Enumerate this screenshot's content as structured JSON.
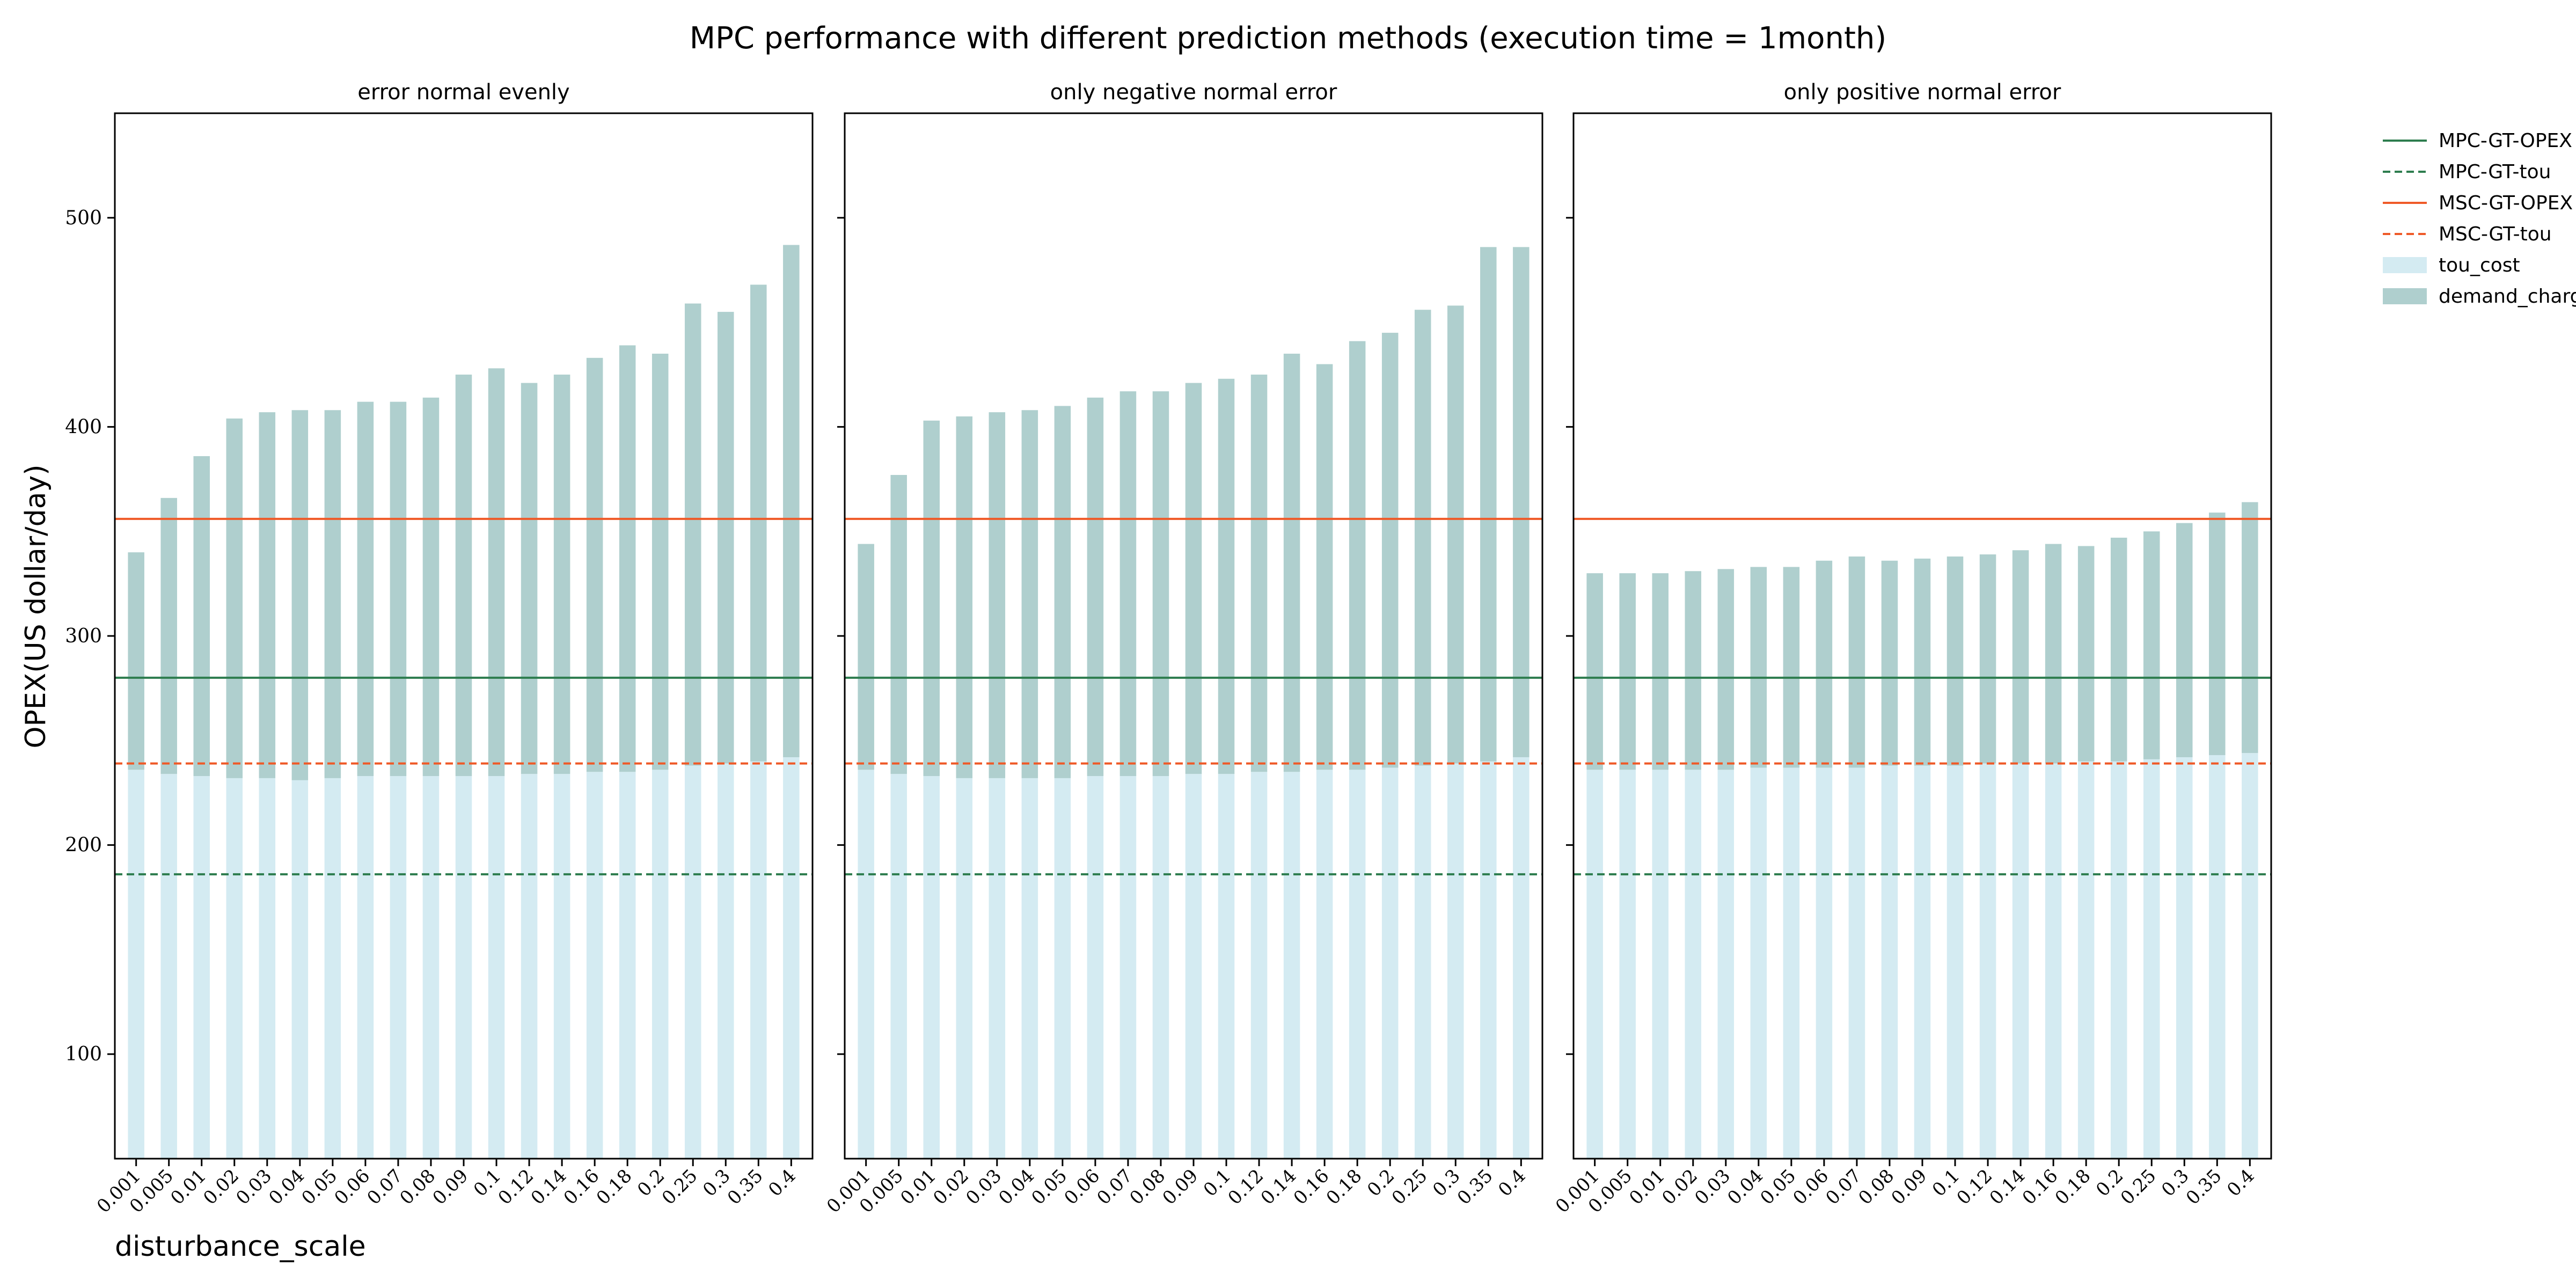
{
  "figure": {
    "title": "MPC performance with different prediction methods (execution time = 1month)",
    "ylabel": "OPEX(US dollar/day)",
    "xlabel": "disturbance_scale"
  },
  "colors": {
    "tou_cost": "#d4ebf2",
    "demand_charge": "#afcfce",
    "mpc": "#2e7d4f",
    "msc": "#ef5a28"
  },
  "legend": {
    "placement": "outside-right",
    "entries": [
      {
        "label": "MPC-GT-OPEX",
        "style": "solid",
        "color": "#2e7d4f"
      },
      {
        "label": "MPC-GT-tou",
        "style": "dashed",
        "color": "#2e7d4f"
      },
      {
        "label": "MSC-GT-OPEX",
        "style": "solid",
        "color": "#ef5a28"
      },
      {
        "label": "MSC-GT-tou",
        "style": "dashed",
        "color": "#ef5a28"
      },
      {
        "label": "tou_cost",
        "style": "patch",
        "color": "#d4ebf2"
      },
      {
        "label": "demand_charge",
        "style": "patch",
        "color": "#afcfce"
      }
    ]
  },
  "chart_data": [
    {
      "type": "bar",
      "stacked": true,
      "title": "error normal evenly",
      "xlabel": "disturbance_scale",
      "ylabel": "OPEX(US dollar/day)",
      "ylim": [
        50,
        550
      ],
      "yticks": [
        100,
        200,
        300,
        400,
        500
      ],
      "categories": [
        "0.001",
        "0.005",
        "0.01",
        "0.02",
        "0.03",
        "0.04",
        "0.05",
        "0.06",
        "0.07",
        "0.08",
        "0.09",
        "0.1",
        "0.12",
        "0.14",
        "0.16",
        "0.18",
        "0.2",
        "0.25",
        "0.3",
        "0.35",
        "0.4"
      ],
      "series": [
        {
          "name": "tou_cost",
          "values": [
            186,
            184,
            183,
            182,
            182,
            181,
            182,
            183,
            183,
            183,
            183,
            183,
            184,
            184,
            185,
            185,
            186,
            188,
            189,
            190,
            192
          ]
        },
        {
          "name": "demand_charge",
          "values": [
            104,
            132,
            153,
            172,
            175,
            177,
            176,
            179,
            179,
            181,
            192,
            195,
            187,
            191,
            198,
            204,
            199,
            221,
            216,
            228,
            245
          ]
        }
      ],
      "hlines": [
        {
          "name": "MPC-GT-OPEX",
          "value": 280
        },
        {
          "name": "MPC-GT-tou",
          "value": 186
        },
        {
          "name": "MSC-GT-OPEX",
          "value": 356
        },
        {
          "name": "MSC-GT-tou",
          "value": 239
        }
      ]
    },
    {
      "type": "bar",
      "stacked": true,
      "title": "only negative normal error",
      "xlabel": "",
      "ylabel": "",
      "ylim": [
        50,
        550
      ],
      "yticks": [
        100,
        200,
        300,
        400,
        500
      ],
      "categories": [
        "0.001",
        "0.005",
        "0.01",
        "0.02",
        "0.03",
        "0.04",
        "0.05",
        "0.06",
        "0.07",
        "0.08",
        "0.09",
        "0.1",
        "0.12",
        "0.14",
        "0.16",
        "0.18",
        "0.2",
        "0.25",
        "0.3",
        "0.35",
        "0.4"
      ],
      "series": [
        {
          "name": "tou_cost",
          "values": [
            186,
            184,
            183,
            182,
            182,
            182,
            182,
            183,
            183,
            183,
            184,
            184,
            185,
            185,
            186,
            186,
            187,
            188,
            189,
            190,
            192
          ]
        },
        {
          "name": "demand_charge",
          "values": [
            108,
            143,
            170,
            173,
            175,
            176,
            178,
            181,
            184,
            184,
            187,
            189,
            190,
            200,
            194,
            205,
            208,
            218,
            219,
            246,
            244
          ]
        }
      ],
      "hlines": [
        {
          "name": "MPC-GT-OPEX",
          "value": 280
        },
        {
          "name": "MPC-GT-tou",
          "value": 186
        },
        {
          "name": "MSC-GT-OPEX",
          "value": 356
        },
        {
          "name": "MSC-GT-tou",
          "value": 239
        }
      ]
    },
    {
      "type": "bar",
      "stacked": true,
      "title": "only positive normal error",
      "xlabel": "",
      "ylabel": "",
      "ylim": [
        50,
        550
      ],
      "yticks": [
        100,
        200,
        300,
        400,
        500
      ],
      "categories": [
        "0.001",
        "0.005",
        "0.01",
        "0.02",
        "0.03",
        "0.04",
        "0.05",
        "0.06",
        "0.07",
        "0.08",
        "0.09",
        "0.1",
        "0.12",
        "0.14",
        "0.16",
        "0.18",
        "0.2",
        "0.25",
        "0.3",
        "0.35",
        "0.4"
      ],
      "series": [
        {
          "name": "tou_cost",
          "values": [
            186,
            186,
            186,
            186,
            186,
            187,
            187,
            187,
            187,
            188,
            188,
            188,
            189,
            189,
            189,
            190,
            190,
            191,
            192,
            193,
            194
          ]
        },
        {
          "name": "demand_charge",
          "values": [
            94,
            94,
            94,
            95,
            96,
            96,
            96,
            99,
            101,
            98,
            99,
            100,
            100,
            102,
            105,
            103,
            107,
            109,
            112,
            116,
            120
          ]
        }
      ],
      "hlines": [
        {
          "name": "MPC-GT-OPEX",
          "value": 280
        },
        {
          "name": "MPC-GT-tou",
          "value": 186
        },
        {
          "name": "MSC-GT-OPEX",
          "value": 356
        },
        {
          "name": "MSC-GT-tou",
          "value": 239
        }
      ]
    }
  ]
}
